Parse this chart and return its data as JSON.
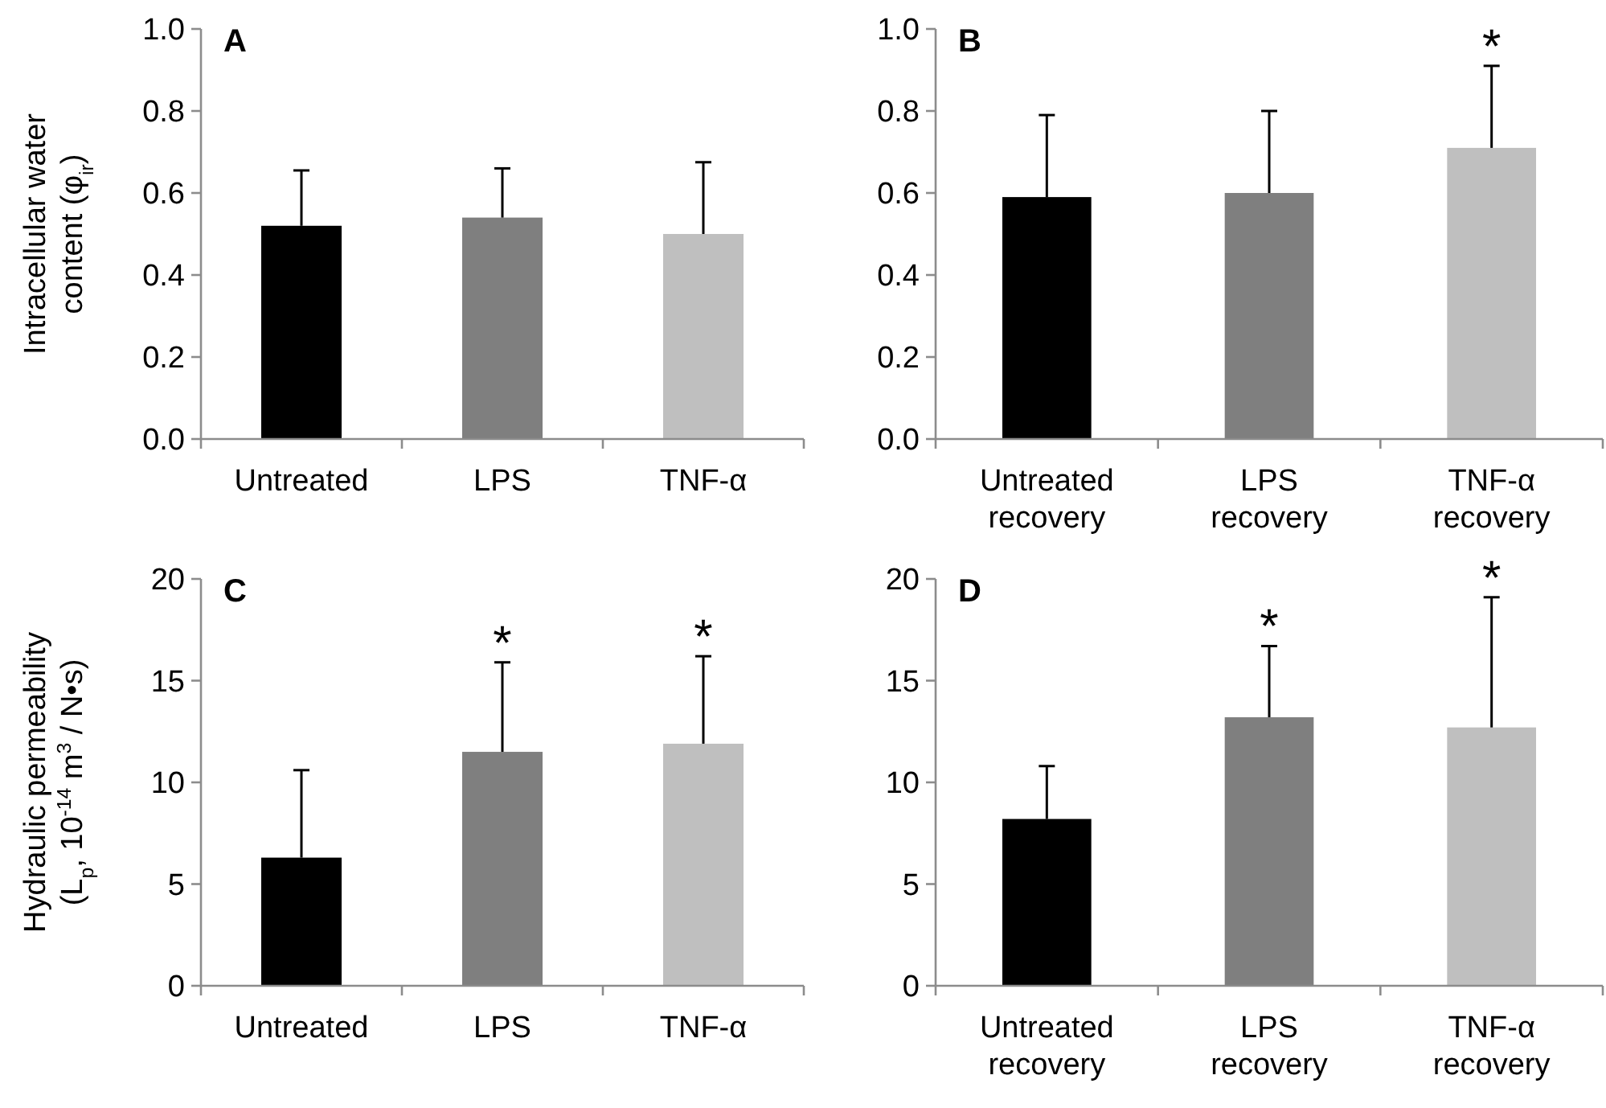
{
  "chart_data": [
    {
      "type": "bar",
      "title": "A",
      "ylabel": "Intracellular water content (φ$_{ir}$)",
      "categories": [
        "Untreated",
        "LPS",
        "TNF-α"
      ],
      "values": [
        0.52,
        0.54,
        0.5
      ],
      "colors": [
        "#000000",
        "#7f7f7f",
        "#bfbfbf"
      ],
      "errors": [
        [
          0.52,
          0.655
        ],
        [
          0.54,
          0.66
        ],
        [
          0.5,
          0.675
        ]
      ],
      "ylim": [
        0,
        1
      ],
      "yticks": [
        {
          "value": 0,
          "label": "0.0"
        },
        {
          "value": 0.2,
          "label": "0.2"
        },
        {
          "value": 0.4,
          "label": "0.4"
        },
        {
          "value": 0.6,
          "label": "0.6"
        },
        {
          "value": 0.8,
          "label": "0.8"
        },
        {
          "value": 1,
          "label": "1.0"
        }
      ],
      "grid": false
    },
    {
      "type": "bar",
      "title": "B",
      "categories": [
        "Untreated recovery",
        "LPS recovery",
        "TNF-α recovery"
      ],
      "values": [
        0.59,
        0.6,
        0.71
      ],
      "colors": [
        "#000000",
        "#7f7f7f",
        "#bfbfbf"
      ],
      "errors": [
        [
          0.59,
          0.79
        ],
        [
          0.6,
          0.8
        ],
        [
          0.71,
          0.91
        ]
      ],
      "ylim": [
        0,
        1
      ],
      "yticks": [
        {
          "value": 0,
          "label": "0.0"
        },
        {
          "value": 0.2,
          "label": "0.2"
        },
        {
          "value": 0.4,
          "label": "0.4"
        },
        {
          "value": 0.6,
          "label": "0.6"
        },
        {
          "value": 0.8,
          "label": "0.8"
        },
        {
          "value": 1,
          "label": "1.0"
        }
      ],
      "grid": false,
      "annotations": [
        {
          "text": "*",
          "x": "TNF-α recovery",
          "y": 0.91
        }
      ]
    },
    {
      "type": "bar",
      "title": "C",
      "ylabel": "Hydraulic permeability (L$_{p}$, 10$^{-14}$ m$^{3}$ / N•s)",
      "categories": [
        "Untreated",
        "LPS",
        "TNF-α"
      ],
      "values": [
        6.3,
        11.5,
        11.9
      ],
      "colors": [
        "#000000",
        "#7f7f7f",
        "#bfbfbf"
      ],
      "errors": [
        [
          6.3,
          10.6
        ],
        [
          11.5,
          15.9
        ],
        [
          11.9,
          16.2
        ]
      ],
      "ylim": [
        0,
        20
      ],
      "yticks": [
        0,
        5,
        10,
        15,
        20
      ],
      "grid": false,
      "annotations": [
        {
          "text": "*",
          "x": "LPS",
          "y": 15.9
        },
        {
          "text": "*",
          "x": "TNF-α",
          "y": 16.2
        }
      ]
    },
    {
      "type": "bar",
      "title": "D",
      "categories": [
        "Untreated recovery",
        "LPS recovery",
        "TNF-α recovery"
      ],
      "values": [
        8.2,
        13.2,
        12.7
      ],
      "colors": [
        "#000000",
        "#7f7f7f",
        "#bfbfbf"
      ],
      "errors": [
        [
          8.2,
          10.8
        ],
        [
          13.2,
          16.7
        ],
        [
          12.7,
          19.1
        ]
      ],
      "ylim": [
        0,
        20
      ],
      "yticks": [
        0,
        5,
        10,
        15,
        20
      ],
      "grid": false,
      "annotations": [
        {
          "text": "*",
          "x": "LPS recovery",
          "y": 16.7
        },
        {
          "text": "*",
          "x": "TNF-α recovery",
          "y": 19.1
        }
      ]
    }
  ]
}
